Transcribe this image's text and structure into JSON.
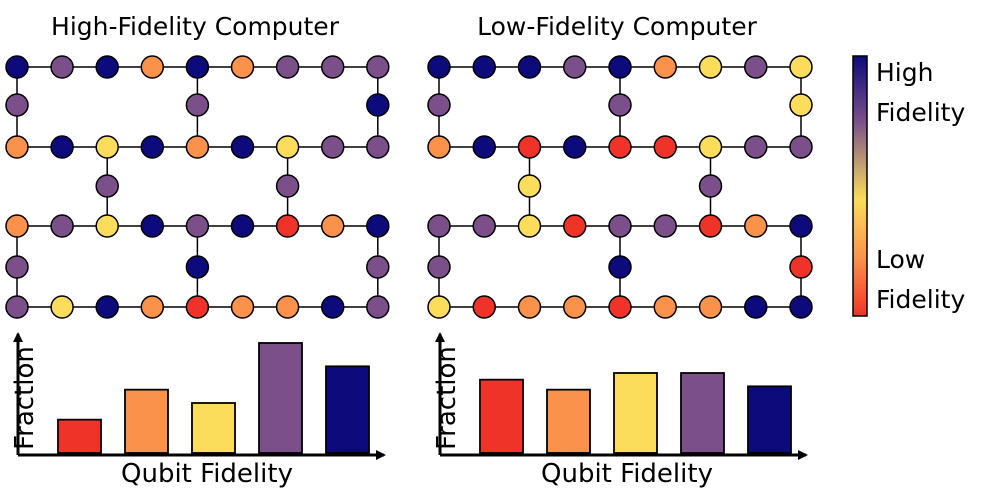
{
  "palette": {
    "red": "#f03329",
    "orange": "#fb924b",
    "yellow": "#fbdd5b",
    "purple": "#7a4f8a",
    "navy": "#0d0b7c"
  },
  "colorbar": {
    "high_label_line1": "High",
    "high_label_line2": "Fidelity",
    "low_label_line1": "Low",
    "low_label_line2": "Fidelity",
    "gradient_stops": [
      "#0d0b7c",
      "#7a4f8a",
      "#fbdd5b",
      "#fb924b",
      "#f03329"
    ]
  },
  "panels": [
    {
      "title": "High-Fidelity Computer",
      "lattice": [
        [
          "navy",
          "purple",
          "navy",
          "orange",
          "navy",
          "orange",
          "purple",
          "purple",
          "purple"
        ],
        [
          "purple",
          null,
          null,
          null,
          "purple",
          null,
          null,
          null,
          "navy"
        ],
        [
          "orange",
          "navy",
          "yellow",
          "navy",
          "orange",
          "navy",
          "yellow",
          "purple",
          "purple"
        ],
        [
          null,
          null,
          "purple",
          null,
          null,
          null,
          "purple",
          null,
          null
        ],
        [
          "orange",
          "purple",
          "yellow",
          "navy",
          "purple",
          "navy",
          "red",
          "orange",
          "navy"
        ],
        [
          "purple",
          null,
          null,
          null,
          "navy",
          null,
          null,
          null,
          "purple"
        ],
        [
          "purple",
          "yellow",
          "navy",
          "orange",
          "red",
          "orange",
          "orange",
          "navy",
          "purple"
        ]
      ],
      "chart_data": {
        "type": "bar",
        "categories": [
          "red",
          "orange",
          "yellow",
          "purple",
          "navy"
        ],
        "values": [
          0.1,
          0.19,
          0.15,
          0.33,
          0.26
        ],
        "ylim": [
          0,
          0.36
        ],
        "xlabel": "Qubit Fidelity",
        "ylabel": "Fraction"
      }
    },
    {
      "title": "Low-Fidelity Computer",
      "lattice": [
        [
          "navy",
          "navy",
          "navy",
          "purple",
          "navy",
          "orange",
          "yellow",
          "purple",
          "yellow"
        ],
        [
          "purple",
          null,
          null,
          null,
          "purple",
          null,
          null,
          null,
          "yellow"
        ],
        [
          "orange",
          "navy",
          "red",
          "navy",
          "red",
          "red",
          "yellow",
          "purple",
          "purple"
        ],
        [
          null,
          null,
          "yellow",
          null,
          null,
          null,
          "purple",
          null,
          null
        ],
        [
          "purple",
          "purple",
          "yellow",
          "red",
          "purple",
          "purple",
          "red",
          "orange",
          "navy"
        ],
        [
          "purple",
          null,
          null,
          null,
          "navy",
          null,
          null,
          null,
          "red"
        ],
        [
          "yellow",
          "red",
          "orange",
          "orange",
          "red",
          "orange",
          "orange",
          "navy",
          "navy"
        ]
      ],
      "chart_data": {
        "type": "bar",
        "categories": [
          "red",
          "orange",
          "yellow",
          "purple",
          "navy"
        ],
        "values": [
          0.22,
          0.19,
          0.24,
          0.24,
          0.2
        ],
        "ylim": [
          0,
          0.36
        ],
        "xlabel": "Qubit Fidelity",
        "ylabel": "Fraction"
      }
    }
  ]
}
